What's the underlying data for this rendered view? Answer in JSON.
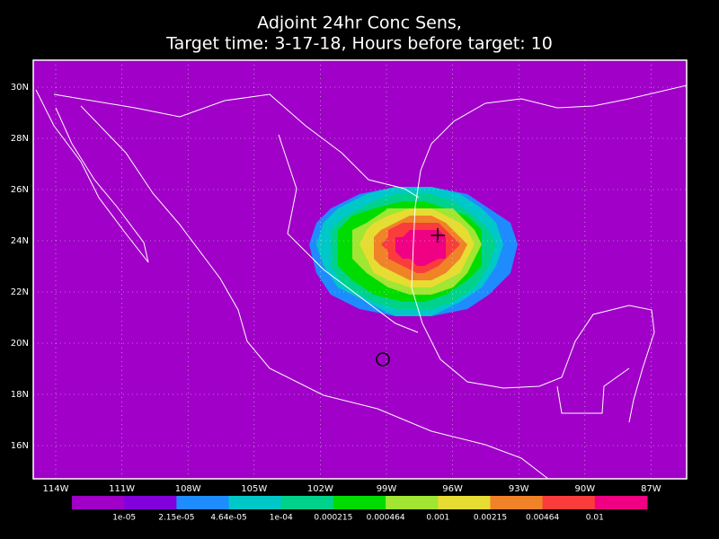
{
  "map": {
    "title": [
      "Adjoint 24hr Conc Sens,",
      "Target time: 3-17-18, Hours before target: 10"
    ],
    "lat_labels": [
      "30N",
      "28N",
      "26N",
      "24N",
      "22N",
      "20N",
      "18N",
      "16N"
    ],
    "lon_labels": [
      "114W",
      "111W",
      "108W",
      "105W",
      "102W",
      "99W",
      "96W",
      "93W",
      "90W",
      "87W"
    ],
    "background_color": "#a000c8",
    "colorbar": {
      "colors": [
        "#a000c8",
        "#8200dc",
        "#1e8cff",
        "#00c8c8",
        "#00d28c",
        "#00dc00",
        "#a0e632",
        "#e6dc32",
        "#f08228",
        "#fa3c3c",
        "#f00082"
      ],
      "labels": [
        "1e-05",
        "2.15e-05",
        "4.64e-05",
        "1e-04",
        "0.000215",
        "0.000464",
        "0.001",
        "0.00215",
        "0.00464",
        "0.01"
      ]
    }
  }
}
